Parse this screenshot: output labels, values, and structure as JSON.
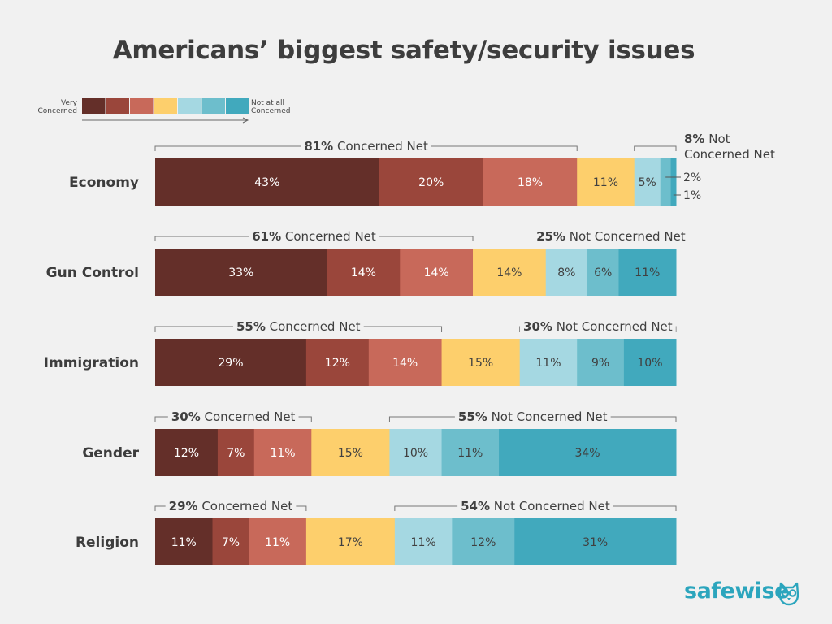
{
  "title": "Americans’ biggest safety/security issues",
  "legend": {
    "left_label": [
      "Very",
      "Concerned"
    ],
    "right_label": [
      "Not at all",
      "Concerned"
    ]
  },
  "colors": [
    "#642f29",
    "#9a463b",
    "#c8695a",
    "#fdcf6c",
    "#a5d8e2",
    "#6dbecc",
    "#41a9bd"
  ],
  "brand": {
    "name": "safewise",
    "color": "#2ba5bd"
  },
  "chart_data": {
    "type": "bar",
    "orientation": "horizontal-stacked-100",
    "title": "Americans’ biggest safety/security issues",
    "scale_labels": [
      "Very Concerned",
      "Not at all Concerned"
    ],
    "categories": [
      "Economy",
      "Gun Control",
      "Immigration",
      "Gender",
      "Religion"
    ],
    "rows": [
      {
        "name": "Economy",
        "values": [
          43,
          20,
          18,
          11,
          5,
          2,
          1
        ],
        "labels": [
          "43%",
          "20%",
          "18%",
          "11%",
          "5%",
          "2%",
          "1%"
        ],
        "concerned_net": {
          "value": "81%",
          "text": "Concerned Net"
        },
        "not_concerned_net": {
          "value": "8%",
          "text": "Not Concerned Net",
          "text_lines": [
            "Not",
            "Concerned Net"
          ]
        }
      },
      {
        "name": "Gun Control",
        "values": [
          33,
          14,
          14,
          14,
          8,
          6,
          11
        ],
        "labels": [
          "33%",
          "14%",
          "14%",
          "14%",
          "8%",
          "6%",
          "11%"
        ],
        "concerned_net": {
          "value": "61%",
          "text": "Concerned Net"
        },
        "not_concerned_net": {
          "value": "25%",
          "text": "Not Concerned Net"
        }
      },
      {
        "name": "Immigration",
        "values": [
          29,
          12,
          14,
          15,
          11,
          9,
          10
        ],
        "labels": [
          "29%",
          "12%",
          "14%",
          "15%",
          "11%",
          "9%",
          "10%"
        ],
        "concerned_net": {
          "value": "55%",
          "text": "Concerned Net"
        },
        "not_concerned_net": {
          "value": "30%",
          "text": "Not Concerned Net"
        }
      },
      {
        "name": "Gender",
        "values": [
          12,
          7,
          11,
          15,
          10,
          11,
          34
        ],
        "labels": [
          "12%",
          "7%",
          "11%",
          "15%",
          "10%",
          "11%",
          "34%"
        ],
        "concerned_net": {
          "value": "30%",
          "text": "Concerned Net"
        },
        "not_concerned_net": {
          "value": "55%",
          "text": "Not Concerned Net"
        }
      },
      {
        "name": "Religion",
        "values": [
          11,
          7,
          11,
          17,
          11,
          12,
          31
        ],
        "labels": [
          "11%",
          "7%",
          "11%",
          "17%",
          "11%",
          "12%",
          "31%"
        ],
        "concerned_net": {
          "value": "29%",
          "text": "Concerned Net"
        },
        "not_concerned_net": {
          "value": "54%",
          "text": "Not Concerned Net"
        }
      }
    ]
  }
}
